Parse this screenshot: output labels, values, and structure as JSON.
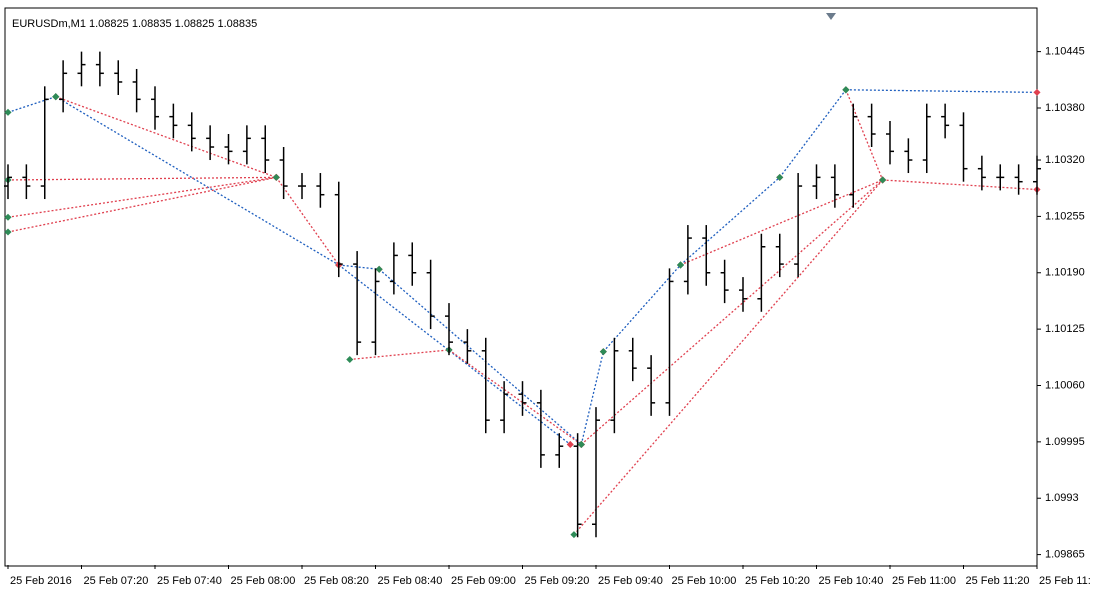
{
  "chart_data": {
    "type": "ohlc",
    "title": "EURUSDm,M1  1.08825 1.08835 1.08825 1.08835",
    "x": [
      "07:00",
      "07:05",
      "07:10",
      "07:15",
      "07:20",
      "07:25",
      "07:30",
      "07:35",
      "07:40",
      "07:45",
      "07:50",
      "07:55",
      "08:00",
      "08:05",
      "08:10",
      "08:15",
      "08:20",
      "08:25",
      "08:30",
      "08:35",
      "08:40",
      "08:45",
      "08:50",
      "08:55",
      "09:00",
      "09:05",
      "09:10",
      "09:15",
      "09:20",
      "09:25",
      "09:30",
      "09:35",
      "09:40",
      "09:45",
      "09:50",
      "09:55",
      "10:00",
      "10:05",
      "10:10",
      "10:15",
      "10:20",
      "10:25",
      "10:30",
      "10:35",
      "10:40",
      "10:45",
      "10:50",
      "10:55",
      "11:00",
      "11:05",
      "11:10",
      "11:15",
      "11:20",
      "11:25",
      "11:30",
      "11:35",
      "11:40"
    ],
    "open": [
      1.1029,
      1.103,
      1.1029,
      1.1039,
      1.1042,
      1.1043,
      1.1042,
      1.1041,
      1.1039,
      1.1037,
      1.1036,
      1.10345,
      1.10335,
      1.1033,
      1.10345,
      1.1032,
      1.1029,
      1.1029,
      1.1028,
      1.102,
      1.1011,
      1.1018,
      1.1021,
      1.1019,
      1.1014,
      1.1011,
      1.101,
      1.1002,
      1.1005,
      1.1004,
      1.0998,
      1.0999,
      1.099,
      1.1002,
      1.101,
      1.1008,
      1.1004,
      1.1018,
      1.1023,
      1.1019,
      1.1017,
      1.1016,
      1.1022,
      1.102,
      1.1029,
      1.103,
      1.1028,
      1.1037,
      1.1035,
      1.1033,
      1.1032,
      1.1037,
      1.1036,
      1.1031,
      1.103,
      1.103,
      1.10295
    ],
    "high": [
      1.10315,
      1.10315,
      1.10405,
      1.10435,
      1.10445,
      1.10445,
      1.10435,
      1.10425,
      1.10405,
      1.10385,
      1.10375,
      1.1036,
      1.1035,
      1.1036,
      1.1036,
      1.10335,
      1.10305,
      1.10305,
      1.10295,
      1.10215,
      1.10195,
      1.10225,
      1.10225,
      1.10205,
      1.10155,
      1.10125,
      1.10115,
      1.10065,
      1.10065,
      1.10055,
      1.10005,
      1.10005,
      1.10035,
      1.10115,
      1.10115,
      1.10095,
      1.10195,
      1.10245,
      1.10245,
      1.10205,
      1.10185,
      1.10235,
      1.10235,
      1.10305,
      1.10315,
      1.10315,
      1.10385,
      1.10385,
      1.10365,
      1.10345,
      1.10385,
      1.10385,
      1.10375,
      1.10325,
      1.10315,
      1.10315,
      1.10325
    ],
    "low": [
      1.10275,
      1.10275,
      1.10275,
      1.10375,
      1.10405,
      1.10405,
      1.10395,
      1.10375,
      1.10355,
      1.10345,
      1.1033,
      1.1032,
      1.10315,
      1.10315,
      1.10305,
      1.10275,
      1.10275,
      1.10265,
      1.10185,
      1.10095,
      1.10095,
      1.10165,
      1.10175,
      1.10125,
      1.10095,
      1.10085,
      1.10005,
      1.10005,
      1.10025,
      1.09965,
      1.09965,
      1.09885,
      1.09885,
      1.10005,
      1.10065,
      1.10025,
      1.10025,
      1.10165,
      1.10175,
      1.10155,
      1.10145,
      1.10145,
      1.10185,
      1.10185,
      1.10275,
      1.10265,
      1.10265,
      1.10335,
      1.10315,
      1.10305,
      1.10305,
      1.10345,
      1.10295,
      1.10285,
      1.10285,
      1.1028,
      1.1028
    ],
    "close": [
      1.103,
      1.1029,
      1.1039,
      1.1042,
      1.1043,
      1.1042,
      1.1041,
      1.1039,
      1.1037,
      1.1036,
      1.10345,
      1.10335,
      1.1033,
      1.10345,
      1.1032,
      1.1029,
      1.1029,
      1.1028,
      1.102,
      1.1011,
      1.1018,
      1.1021,
      1.1019,
      1.1014,
      1.1011,
      1.101,
      1.1002,
      1.1005,
      1.1004,
      1.0998,
      1.0999,
      1.099,
      1.1002,
      1.101,
      1.1008,
      1.1004,
      1.1018,
      1.1023,
      1.1019,
      1.1017,
      1.1016,
      1.1022,
      1.102,
      1.1029,
      1.103,
      1.1028,
      1.1037,
      1.1035,
      1.1033,
      1.1032,
      1.1037,
      1.1036,
      1.1031,
      1.103,
      1.103,
      1.10295,
      1.1031
    ],
    "color": "#000000",
    "xlim": [
      "07:00",
      "11:40"
    ],
    "xticks": [
      {
        "value": "07:00",
        "label": "25 Feb 2016"
      },
      {
        "value": "07:20",
        "label": "25 Feb 07:20"
      },
      {
        "value": "07:40",
        "label": "25 Feb 07:40"
      },
      {
        "value": "08:00",
        "label": "25 Feb 08:00"
      },
      {
        "value": "08:20",
        "label": "25 Feb 08:20"
      },
      {
        "value": "08:40",
        "label": "25 Feb 08:40"
      },
      {
        "value": "09:00",
        "label": "25 Feb 09:00"
      },
      {
        "value": "09:20",
        "label": "25 Feb 09:20"
      },
      {
        "value": "09:40",
        "label": "25 Feb 09:40"
      },
      {
        "value": "10:00",
        "label": "25 Feb 10:00"
      },
      {
        "value": "10:20",
        "label": "25 Feb 10:20"
      },
      {
        "value": "10:40",
        "label": "25 Feb 10:40"
      },
      {
        "value": "11:00",
        "label": "25 Feb 11:00"
      },
      {
        "value": "11:20",
        "label": "25 Feb 11:20"
      },
      {
        "value": "11:40",
        "label": "25 Feb 11:"
      }
    ],
    "ylim": [
      1.09853,
      1.10493
    ],
    "yticks": [
      1.10445,
      {
        "value": 1.1038,
        "label": "1.10380"
      },
      {
        "value": 1.1032,
        "label": "1.10320"
      },
      1.10255,
      {
        "value": 1.1019,
        "label": "1.10190"
      },
      1.10125,
      {
        "value": 1.1006,
        "label": "1.10060"
      },
      1.09995,
      1.0993,
      1.09865
    ],
    "grid": false,
    "trendlines": [
      {
        "color": "#1f5fbf",
        "x": [
          "07:00",
          "07:13"
        ],
        "y": [
          1.10375,
          1.10393
        ]
      },
      {
        "color": "#1f5fbf",
        "x": [
          "07:13",
          "08:30"
        ],
        "y": [
          1.10393,
          1.10199
        ]
      },
      {
        "color": "#1f5fbf",
        "x": [
          "08:30",
          "08:41"
        ],
        "y": [
          1.10199,
          1.10194
        ]
      },
      {
        "color": "#1f5fbf",
        "x": [
          "08:41",
          "09:36"
        ],
        "y": [
          1.10194,
          1.09992
        ]
      },
      {
        "color": "#1f5fbf",
        "x": [
          "08:30",
          "09:33"
        ],
        "y": [
          1.10199,
          1.09992
        ]
      },
      {
        "color": "#1f5fbf",
        "x": [
          "09:36",
          "09:42"
        ],
        "y": [
          1.09992,
          1.10099
        ]
      },
      {
        "color": "#1f5fbf",
        "x": [
          "09:42",
          "10:03"
        ],
        "y": [
          1.10099,
          1.10199
        ]
      },
      {
        "color": "#1f5fbf",
        "x": [
          "10:03",
          "10:30"
        ],
        "y": [
          1.10199,
          1.103
        ]
      },
      {
        "color": "#1f5fbf",
        "x": [
          "10:30",
          "10:48"
        ],
        "y": [
          1.103,
          1.10401
        ]
      },
      {
        "color": "#1f5fbf",
        "x": [
          "10:48",
          "11:40"
        ],
        "y": [
          1.10401,
          1.10398
        ]
      },
      {
        "color": "#e0404f",
        "x": [
          "07:00",
          "08:13"
        ],
        "y": [
          1.10297,
          1.103
        ]
      },
      {
        "color": "#e0404f",
        "x": [
          "07:00",
          "08:13"
        ],
        "y": [
          1.10254,
          1.103
        ]
      },
      {
        "color": "#e0404f",
        "x": [
          "07:00",
          "08:13"
        ],
        "y": [
          1.10237,
          1.103
        ]
      },
      {
        "color": "#e0404f",
        "x": [
          "07:13",
          "08:13"
        ],
        "y": [
          1.10393,
          1.103
        ]
      },
      {
        "color": "#e0404f",
        "x": [
          "08:13",
          "08:30"
        ],
        "y": [
          1.103,
          1.10199
        ]
      },
      {
        "color": "#e0404f",
        "x": [
          "08:33",
          "09:00"
        ],
        "y": [
          1.1009,
          1.10101
        ]
      },
      {
        "color": "#e0404f",
        "x": [
          "09:00",
          "09:36"
        ],
        "y": [
          1.10101,
          1.09992
        ]
      },
      {
        "color": "#e0404f",
        "x": [
          "09:34",
          "10:58"
        ],
        "y": [
          1.09888,
          1.10297
        ]
      },
      {
        "color": "#e0404f",
        "x": [
          "09:36",
          "10:58"
        ],
        "y": [
          1.09992,
          1.10297
        ]
      },
      {
        "color": "#e0404f",
        "x": [
          "10:03",
          "10:58"
        ],
        "y": [
          1.10199,
          1.10297
        ]
      },
      {
        "color": "#e0404f",
        "x": [
          "10:48",
          "10:58"
        ],
        "y": [
          1.10401,
          1.10297
        ]
      },
      {
        "color": "#e0404f",
        "x": [
          "10:58",
          "11:40"
        ],
        "y": [
          1.10297,
          1.10286
        ]
      }
    ]
  }
}
